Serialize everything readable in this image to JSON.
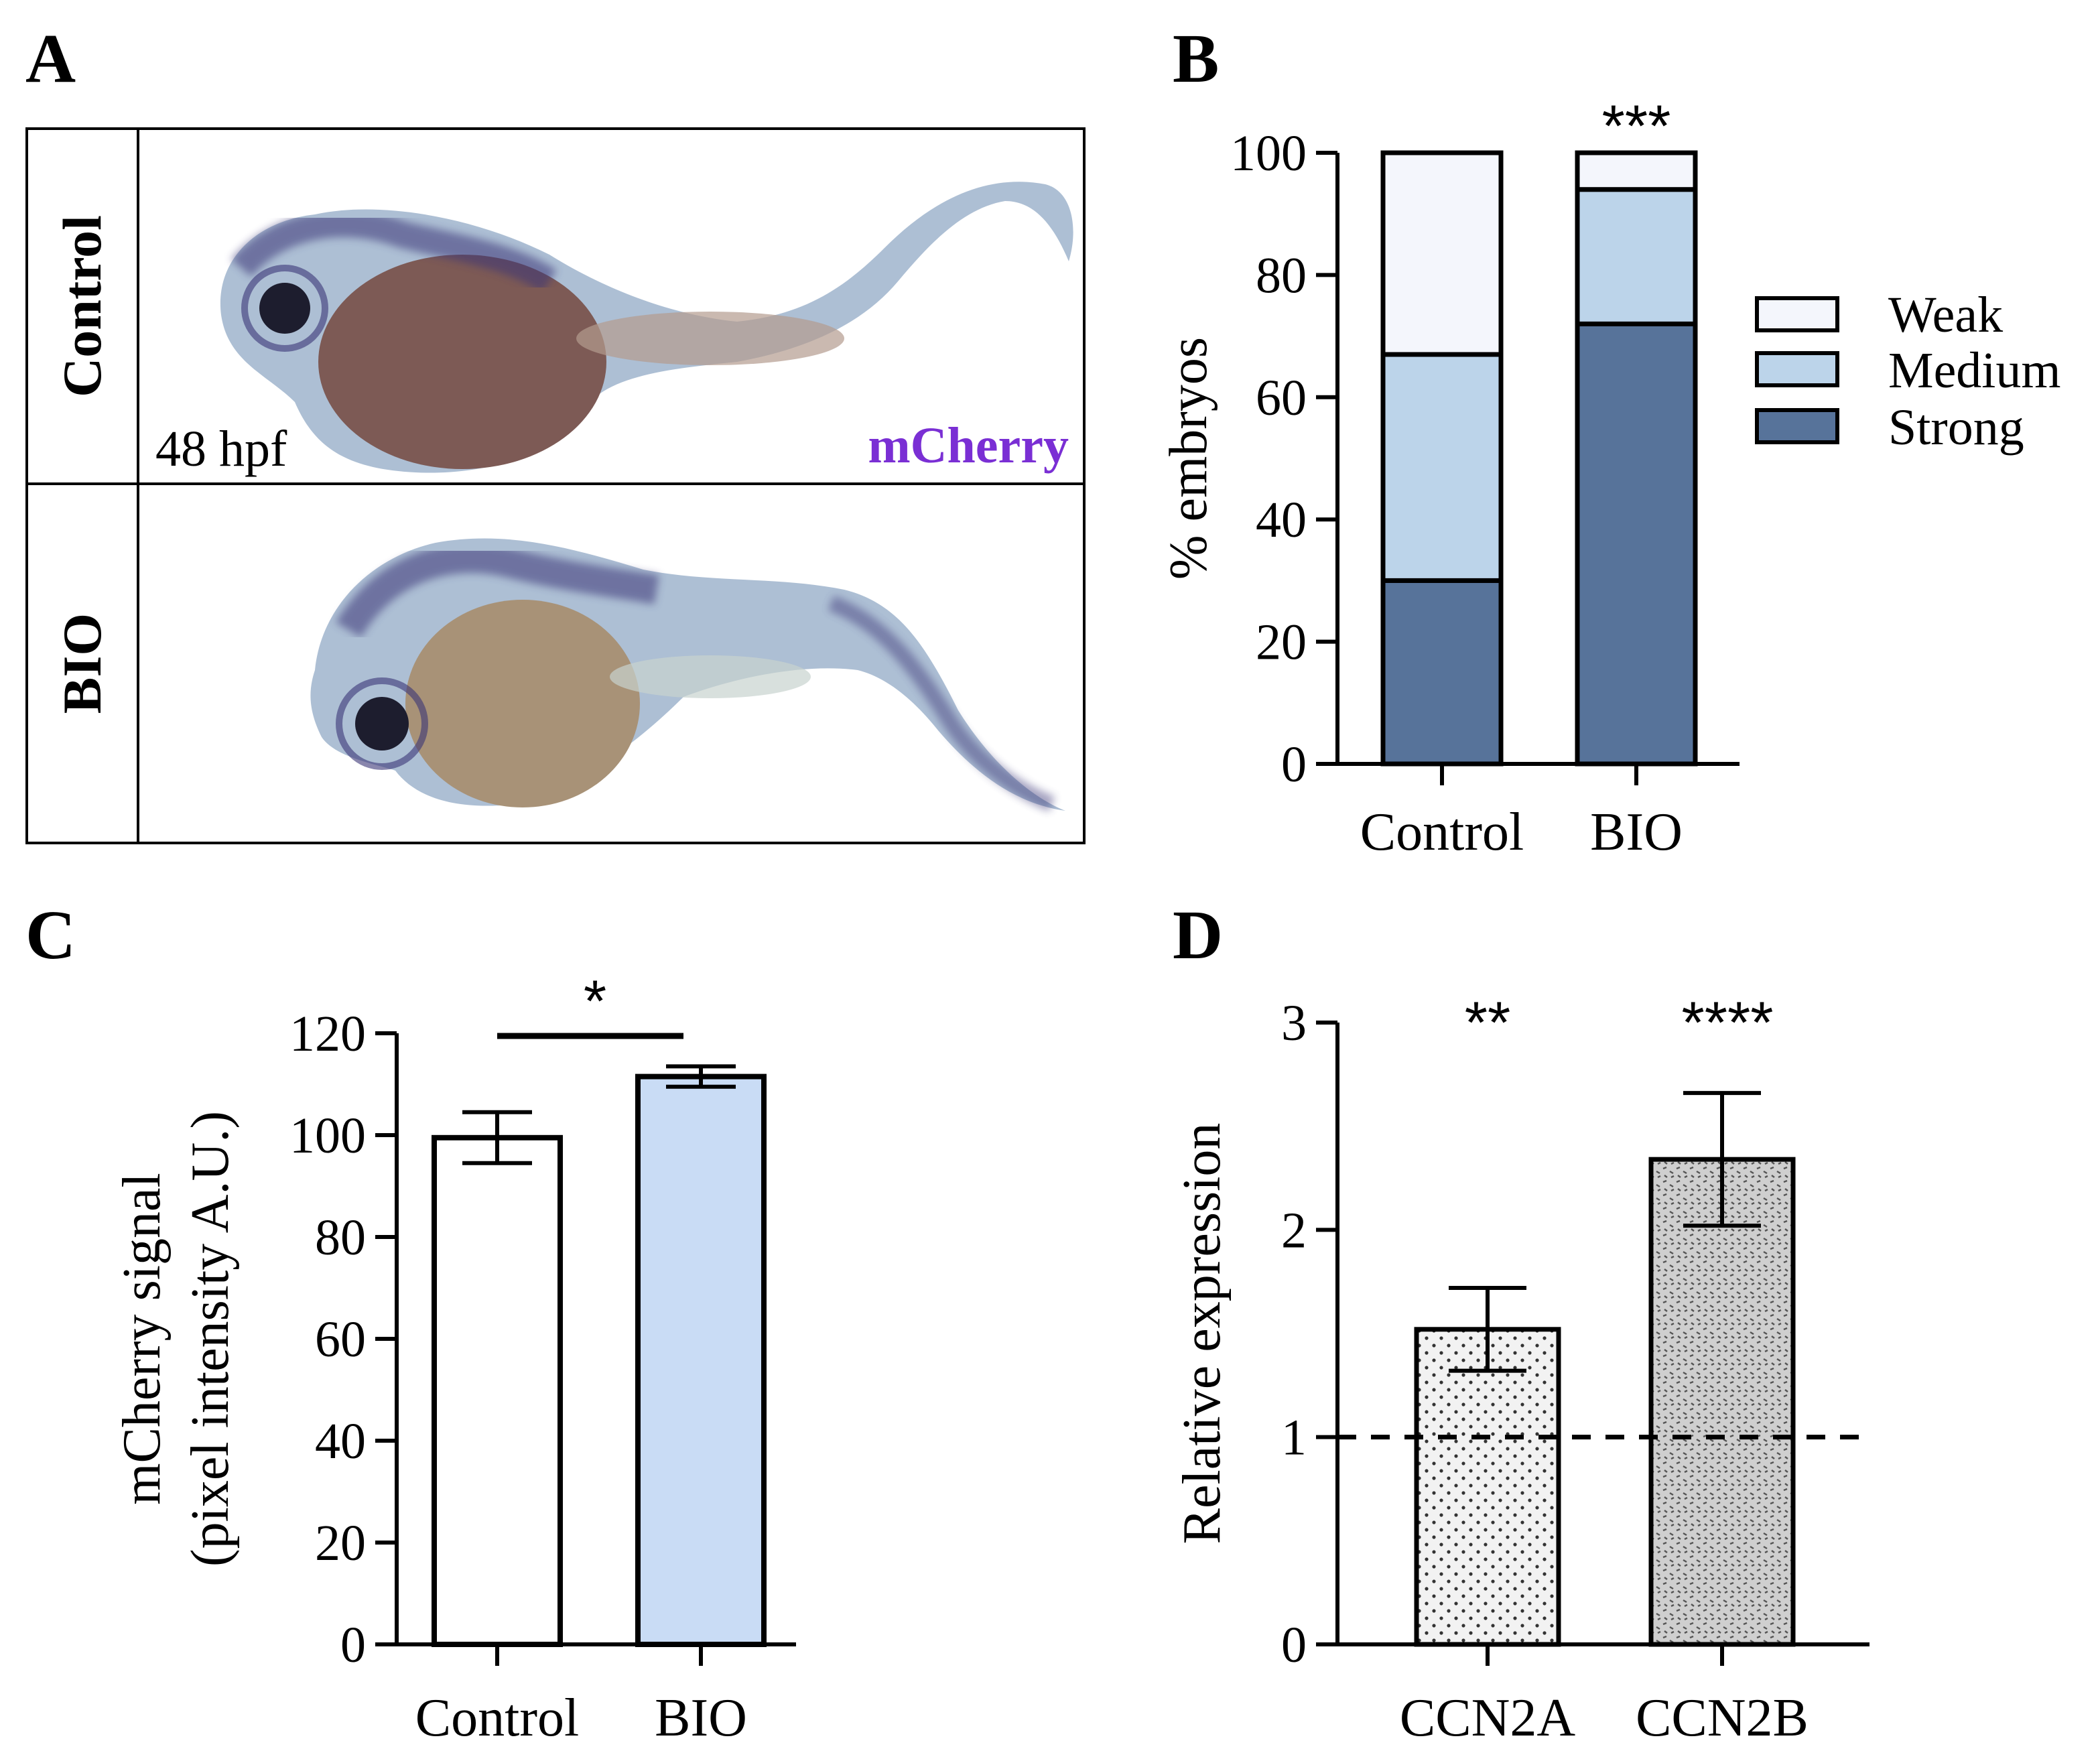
{
  "panels": {
    "a": {
      "letter": "A"
    },
    "b": {
      "letter": "B"
    },
    "c": {
      "letter": "C"
    },
    "d": {
      "letter": "D"
    }
  },
  "panel_a": {
    "row_labels": [
      "Control",
      "BIO"
    ],
    "stage_label": "48 hpf",
    "stain_label": "mCherry",
    "stain_color": "#7a2fd4",
    "embryo_tint": "#9fb4cc",
    "embryo_stain": "#3a3577",
    "yolk_control": "#7d5a55",
    "yolk_bio": "#a89277"
  },
  "colors": {
    "weak": "#f4f6fc",
    "medium": "#bcd4ea",
    "strong": "#57739a",
    "c_bio_fill": "#c9dcf5",
    "d_ccn2a_fill": "#f2f2f2",
    "d_ccn2b_fill": "#cfcfcf"
  },
  "chart_data": [
    {
      "panel": "B",
      "type": "bar",
      "stacked": true,
      "categories": [
        "Control",
        "BIO"
      ],
      "series": [
        {
          "name": "Strong",
          "values": [
            30,
            72
          ]
        },
        {
          "name": "Medium",
          "values": [
            37,
            22
          ]
        },
        {
          "name": "Weak",
          "values": [
            33,
            6
          ]
        }
      ],
      "legend": [
        "Weak",
        "Medium",
        "Strong"
      ],
      "legend_position": "right",
      "ylabel": "% embryos",
      "ylim": [
        0,
        100
      ],
      "yticks": [
        "0",
        "20",
        "40",
        "60",
        "80",
        "100"
      ],
      "annotations": [
        {
          "category": "BIO",
          "text": "***"
        }
      ]
    },
    {
      "panel": "C",
      "type": "bar",
      "categories": [
        "Control",
        "BIO"
      ],
      "values": [
        99.5,
        111.5
      ],
      "errors": [
        5,
        2
      ],
      "ylabel_line1": "mCherry signal",
      "ylabel_line2": "(pixel intensity A.U.)",
      "ylim": [
        0,
        120
      ],
      "yticks": [
        "0",
        "20",
        "40",
        "60",
        "80",
        "100",
        "120"
      ],
      "annotations": [
        {
          "text": "*",
          "between": [
            "Control",
            "BIO"
          ]
        }
      ]
    },
    {
      "panel": "D",
      "type": "bar",
      "categories": [
        "CCN2A",
        "CCN2B"
      ],
      "values": [
        1.52,
        2.34
      ],
      "errors": [
        0.2,
        0.32
      ],
      "reference_line": 1,
      "ylabel": "Relative expression",
      "ylim": [
        0,
        3
      ],
      "yticks": [
        "0",
        "1",
        "2",
        "3"
      ],
      "annotations": [
        {
          "category": "CCN2A",
          "text": "**"
        },
        {
          "category": "CCN2B",
          "text": "****"
        }
      ]
    }
  ]
}
